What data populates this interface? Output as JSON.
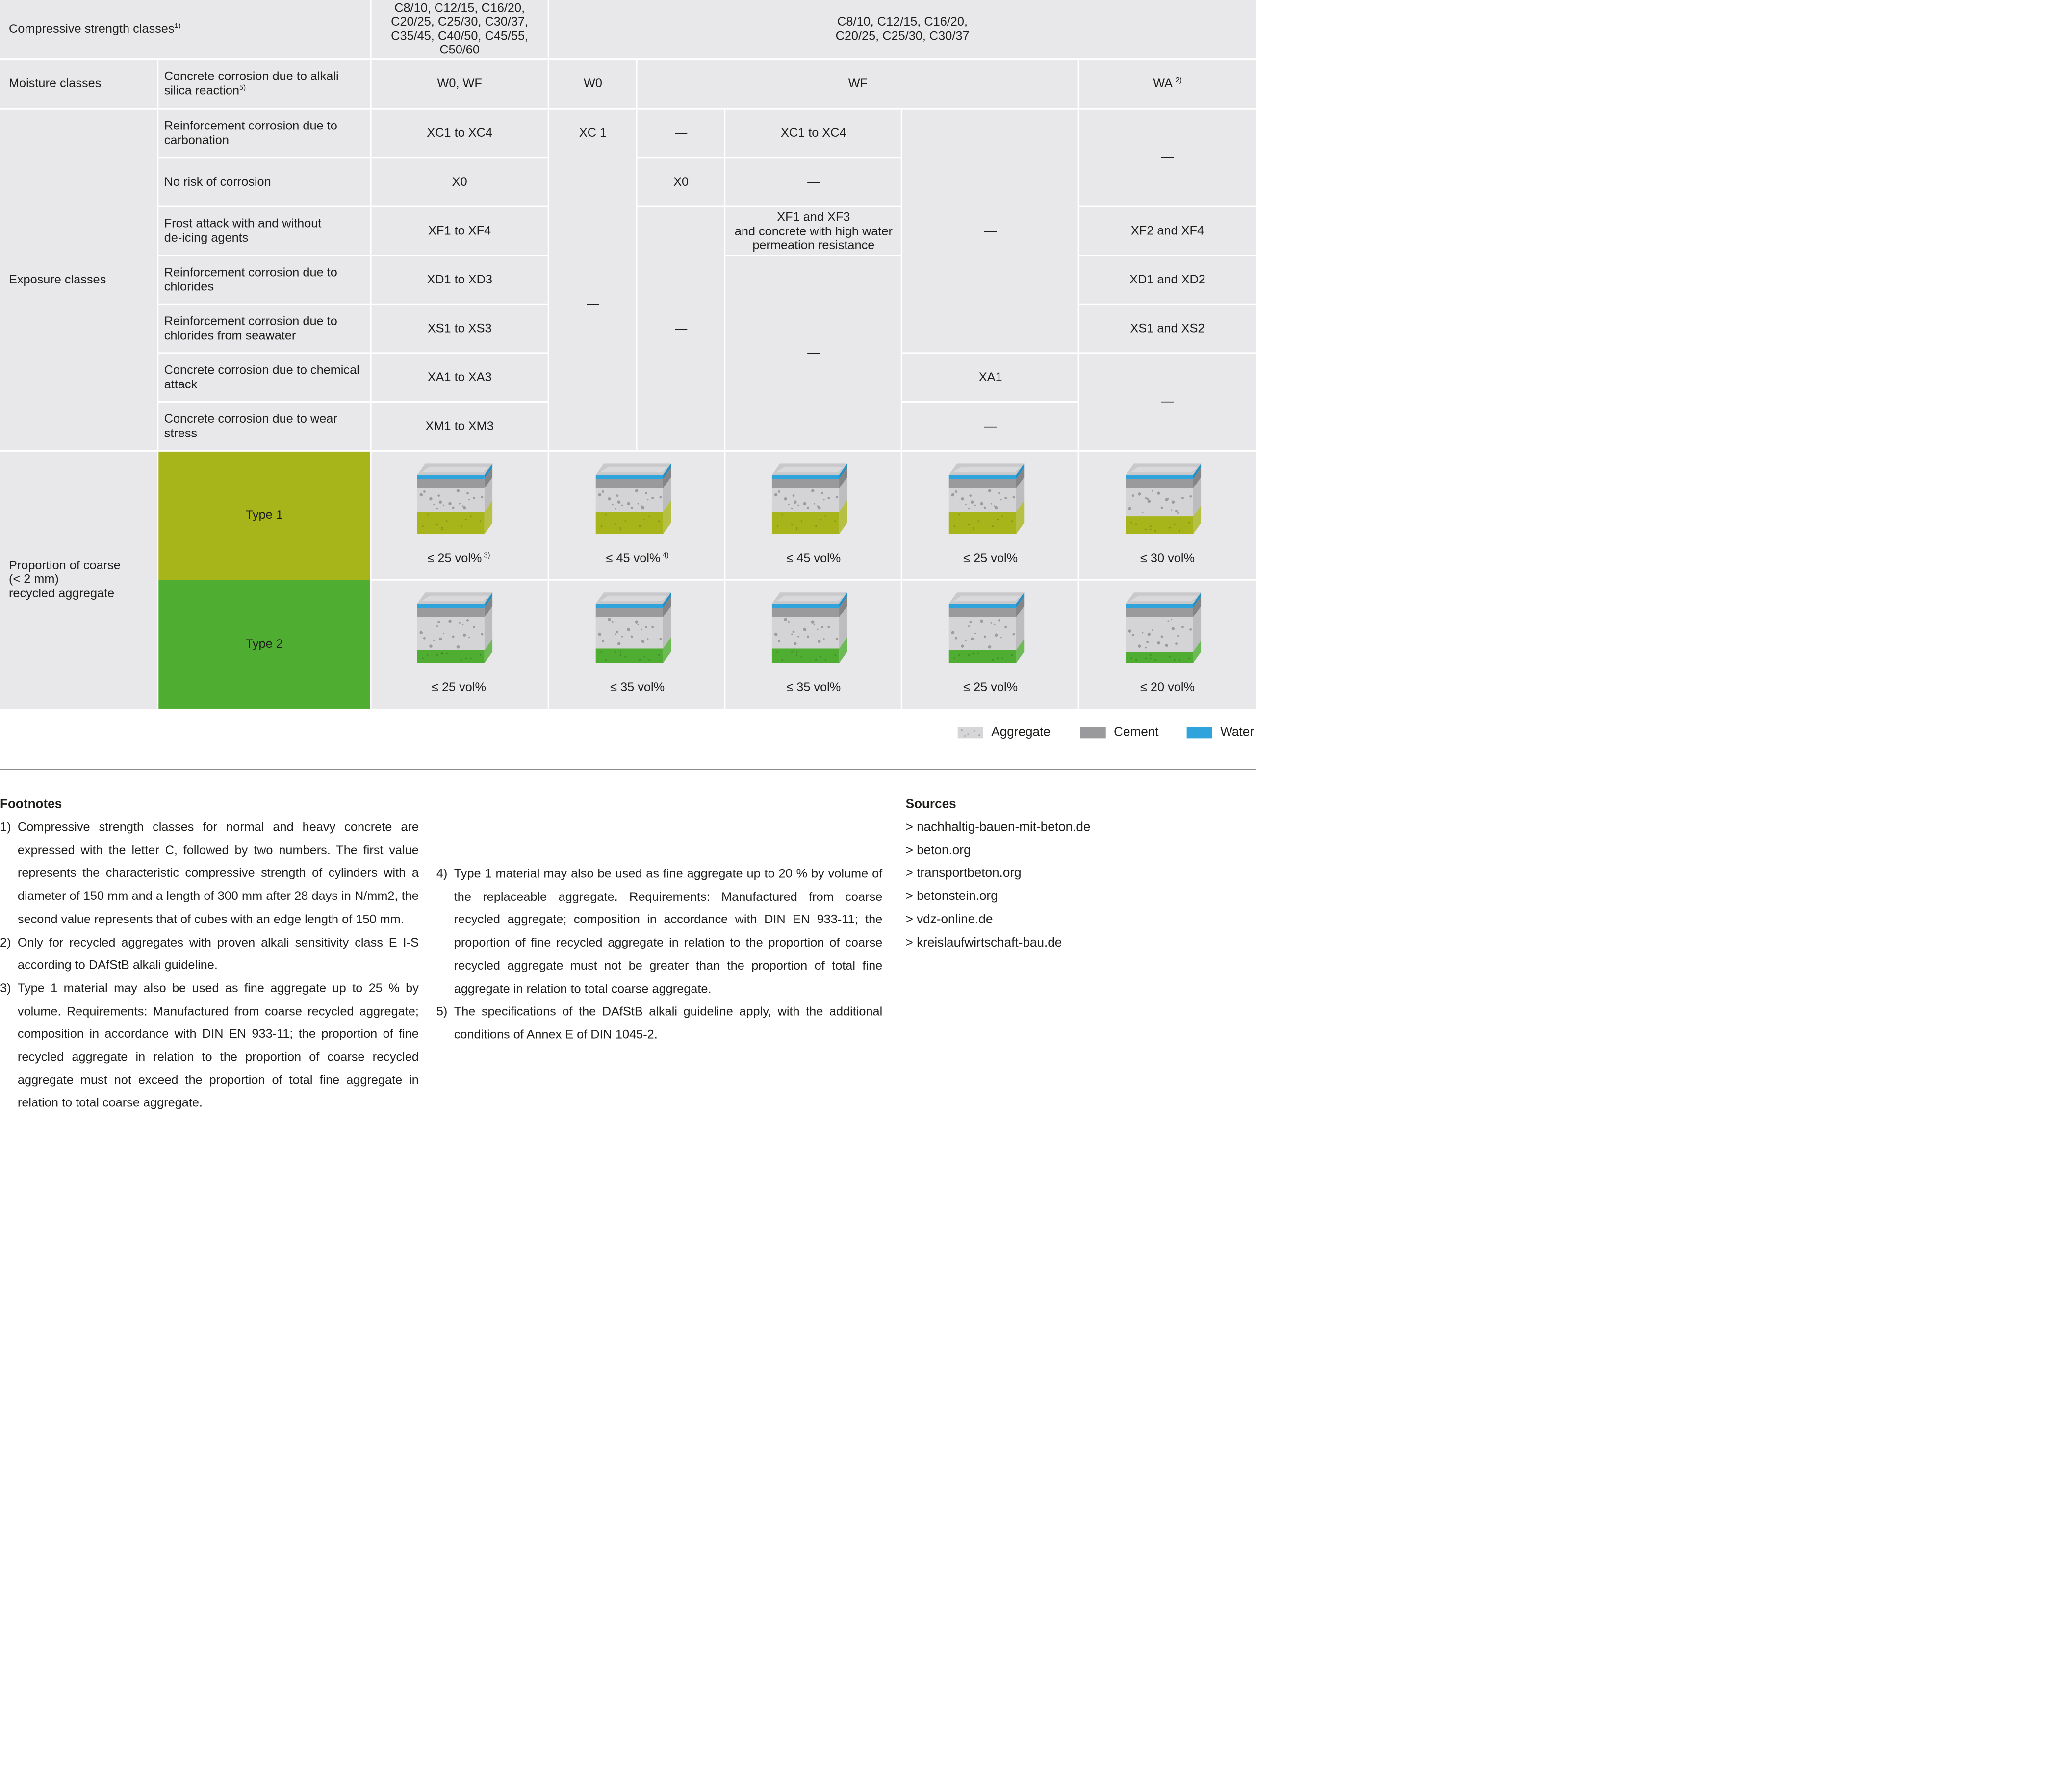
{
  "table": {
    "rows": {
      "compressive": "Compressive strength classes",
      "compressive_sup": "1)",
      "moisture": "Moisture classes",
      "exposure": "Exposure classes",
      "proportion": "Proportion of coarse\n(< 2 mm)\nrecycled aggregate"
    },
    "strength_col1": "C8/10, C12/15, C16/20, C20/25, C25/30, C30/37, C35/45, C40/50, C45/55, C50/60",
    "strength_col2": "C8/10, C12/15, C16/20,\nC20/25, C25/30, C30/37",
    "alkali_label": "Concrete corrosion due to alkali-\nsilica reaction",
    "alkali_sup": "5)",
    "moisture_values": {
      "w0wf": "W0, WF",
      "w0": "W0",
      "wf": "WF",
      "wa": "WA",
      "wa_sup": "2)"
    },
    "exposure_labels": [
      "Reinforcement corrosion due to carbonation",
      "No risk of corrosion",
      "Frost attack with and without de-icing agents",
      "Reinforcement corrosion due to chlorides",
      "Reinforcement corrosion due to chlorides from seawater",
      "Concrete corrosion due to chemical attack",
      "Concrete corrosion due to wear stress"
    ],
    "col1_values": [
      "XC1 to XC4",
      "X0",
      "XF1 to XF4",
      "XD1 to XD3",
      "XS1 to XS3",
      "XA1 to XA3",
      "XM1 to XM3"
    ],
    "cells": {
      "xc1": "XC 1",
      "dash": "—",
      "x0": "X0",
      "xc1xc4": "XC1 to XC4",
      "xf1xf3": "XF1 and XF3\nand concrete with high water permeation resistance",
      "xa1": "XA1",
      "xf2xf4": "XF2 and XF4",
      "xd1xd2": "XD1 and XD2",
      "xs1xs2": "XS1 and XS2"
    },
    "type1_label": "Type 1",
    "type2_label": "Type 2",
    "type1_values": [
      "≤ 25 vol%",
      "≤ 45 vol%",
      "≤ 45 vol%",
      "≤ 25 vol%",
      "≤ 30 vol%"
    ],
    "type1_sups": [
      "3)",
      "4)",
      "",
      "",
      ""
    ],
    "type2_values": [
      "≤ 25 vol%",
      "≤ 35 vol%",
      "≤ 35 vol%",
      "≤ 25 vol%",
      "≤ 20 vol%"
    ]
  },
  "legend": {
    "aggregate": "Aggregate",
    "cement": "Cement",
    "water": "Water"
  },
  "colors": {
    "table_bg": "#e8e8ea",
    "type1": "#a8b51a",
    "type2": "#4fae32",
    "water": "#2ea3dc",
    "cement": "#9a9a9c"
  },
  "footnotes": {
    "title": "Footnotes",
    "items": [
      {
        "num": "1)",
        "text": "Compressive strength classes for normal and heavy concrete are expressed with the letter C, followed by two numbers. The first value represents the characteristic compressive strength of cylinders with a diameter of 150 mm and a length of 300 mm after 28 days in N/mm2, the second value represents that of cubes with an edge length of 150 mm."
      },
      {
        "num": "2)",
        "text": "Only for recycled aggregates with proven alkali sensitivity class E I-S according to DAfStB alkali guideline."
      },
      {
        "num": "3)",
        "text": "Type 1 material may also be used as fine aggregate up to 25 % by volume. Requirements: Manufactured from coarse recycled aggregate; composition in accordance with DIN EN 933-11; the proportion of fine recycled aggregate in relation to the proportion of coarse recycled aggregate must not exceed the proportion of total fine aggregate in relation to total coarse aggregate."
      },
      {
        "num": "4)",
        "text": "Type 1 material may also be used as fine aggregate up to 20 % by volume of the replaceable aggregate. Requirements: Manufactured from coarse recycled aggregate; composition in accordance with DIN EN 933-11; the proportion of fine recycled aggregate in relation to the proportion of coarse recycled aggregate must not be greater than the proportion of total fine aggregate in relation to total coarse aggregate."
      },
      {
        "num": "5)",
        "text": "The specifications of the DAfStB alkali guideline apply, with the additional conditions of Annex E of DIN 1045-2."
      }
    ]
  },
  "sources": {
    "title": "Sources",
    "items": [
      "> nachhaltig-bauen-mit-beton.de",
      "> beton.org",
      "> transportbeton.org",
      "> betonstein.org",
      "> vdz-online.de",
      "> kreislaufwirtschaft-bau.de"
    ]
  }
}
